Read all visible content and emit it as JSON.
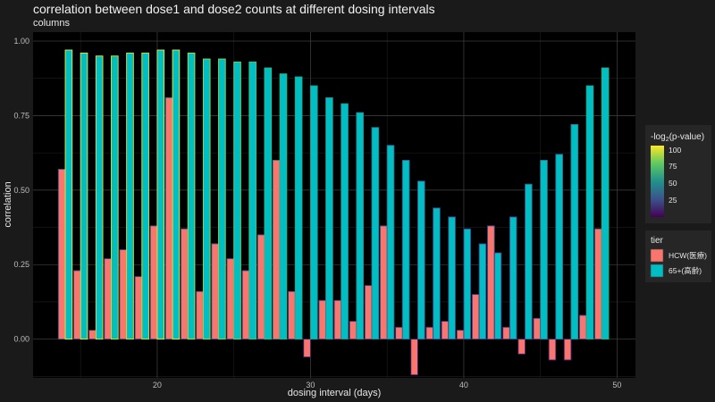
{
  "chart_data": {
    "type": "bar",
    "title": "correlation between dose1 and dose2 counts at different dosing intervals",
    "subtitle": "columns",
    "xlabel": "dosing interval (days)",
    "ylabel": "correlation",
    "xlim": [
      11.9,
      51.2
    ],
    "ylim": [
      -0.13,
      1.03
    ],
    "x_ticks": [
      20,
      30,
      40,
      50
    ],
    "y_ticks": [
      0.0,
      0.25,
      0.5,
      0.75,
      1.0
    ],
    "y_tick_labels": [
      "0.00",
      "0.25",
      "0.50",
      "0.75",
      "1.00"
    ],
    "grid": true,
    "legend_position": "right",
    "x": [
      14,
      15,
      16,
      17,
      18,
      19,
      20,
      21,
      22,
      23,
      24,
      25,
      26,
      27,
      28,
      29,
      30,
      31,
      32,
      33,
      34,
      35,
      36,
      37,
      38,
      39,
      40,
      41,
      42,
      43,
      44,
      45,
      46,
      47,
      48,
      49
    ],
    "series": [
      {
        "name": "HCW(医療)",
        "color": "#f8766d",
        "values": [
          0.57,
          0.23,
          0.03,
          0.27,
          0.3,
          0.21,
          0.38,
          0.81,
          0.37,
          0.16,
          0.32,
          0.27,
          0.23,
          0.35,
          0.6,
          0.16,
          -0.06,
          0.13,
          0.13,
          0.06,
          0.18,
          0.38,
          0.04,
          -0.12,
          0.04,
          0.06,
          0.03,
          0.15,
          0.38,
          0.04,
          -0.05,
          0.07,
          -0.07,
          -0.07,
          0.08,
          0.37
        ]
      },
      {
        "name": "65+(高齢)",
        "color": "#00bfc4",
        "values": [
          0.97,
          0.96,
          0.95,
          0.95,
          0.96,
          0.96,
          0.97,
          0.97,
          0.96,
          0.94,
          0.94,
          0.93,
          0.93,
          0.91,
          0.89,
          0.88,
          0.85,
          0.81,
          0.79,
          0.76,
          0.71,
          0.65,
          0.6,
          0.53,
          0.44,
          0.41,
          0.37,
          0.32,
          0.29,
          0.41,
          0.52,
          0.6,
          0.62,
          0.72,
          0.85,
          0.91
        ]
      }
    ],
    "outline_legend": {
      "title": "-log2(p-value)",
      "ticks": [
        "100",
        "75",
        "50",
        "25"
      ],
      "colors": [
        "#440154",
        "#3b528b",
        "#21918c",
        "#5ec962",
        "#fde725"
      ]
    },
    "fill_legend": {
      "title": "tier",
      "items": [
        "HCW(医療)",
        "65+(高齢)"
      ]
    },
    "outline_color_65": [
      "#fde725",
      "#fde725",
      "#e8e419",
      "#d7e219",
      "#e5e419",
      "#dde318",
      "#fde725",
      "#fde725",
      "#c2df23",
      "#a0da39",
      "#8fd744",
      "#73d056",
      "#4ac16d",
      "#35b779",
      "#2fb47c",
      "#23a983",
      "#1f9e89",
      "#21918c",
      "#228b8d",
      "#25858e",
      "#2a788e",
      "#2f6c8e",
      "#345f8d",
      "#38598c",
      "#3e4989",
      "#414487",
      "#443a83",
      "#463480",
      "#482475",
      "#443983",
      "#3b528b",
      "#2c728e",
      "#31688e",
      "#27808e",
      "#20a486",
      "#2ab07f"
    ],
    "outline_color_hcw": [
      "#3b528b",
      "#453581",
      "#472d7b",
      "#433d84",
      "#3e4989",
      "#453882",
      "#3e4c8a",
      "#2d708e",
      "#3e4989",
      "#433e85",
      "#3d4e8a",
      "#414487",
      "#433d84",
      "#3f4889",
      "#26828e",
      "#443983",
      "#481f70",
      "#443983",
      "#453781",
      "#472d7b",
      "#433d84",
      "#3e4989",
      "#472a7a",
      "#481b6d",
      "#472d7b",
      "#472a7a",
      "#472d7b",
      "#453882",
      "#3e4a89",
      "#472d7b",
      "#481f70",
      "#46327e",
      "#482374",
      "#482374",
      "#463480",
      "#3d4d8a"
    ]
  }
}
